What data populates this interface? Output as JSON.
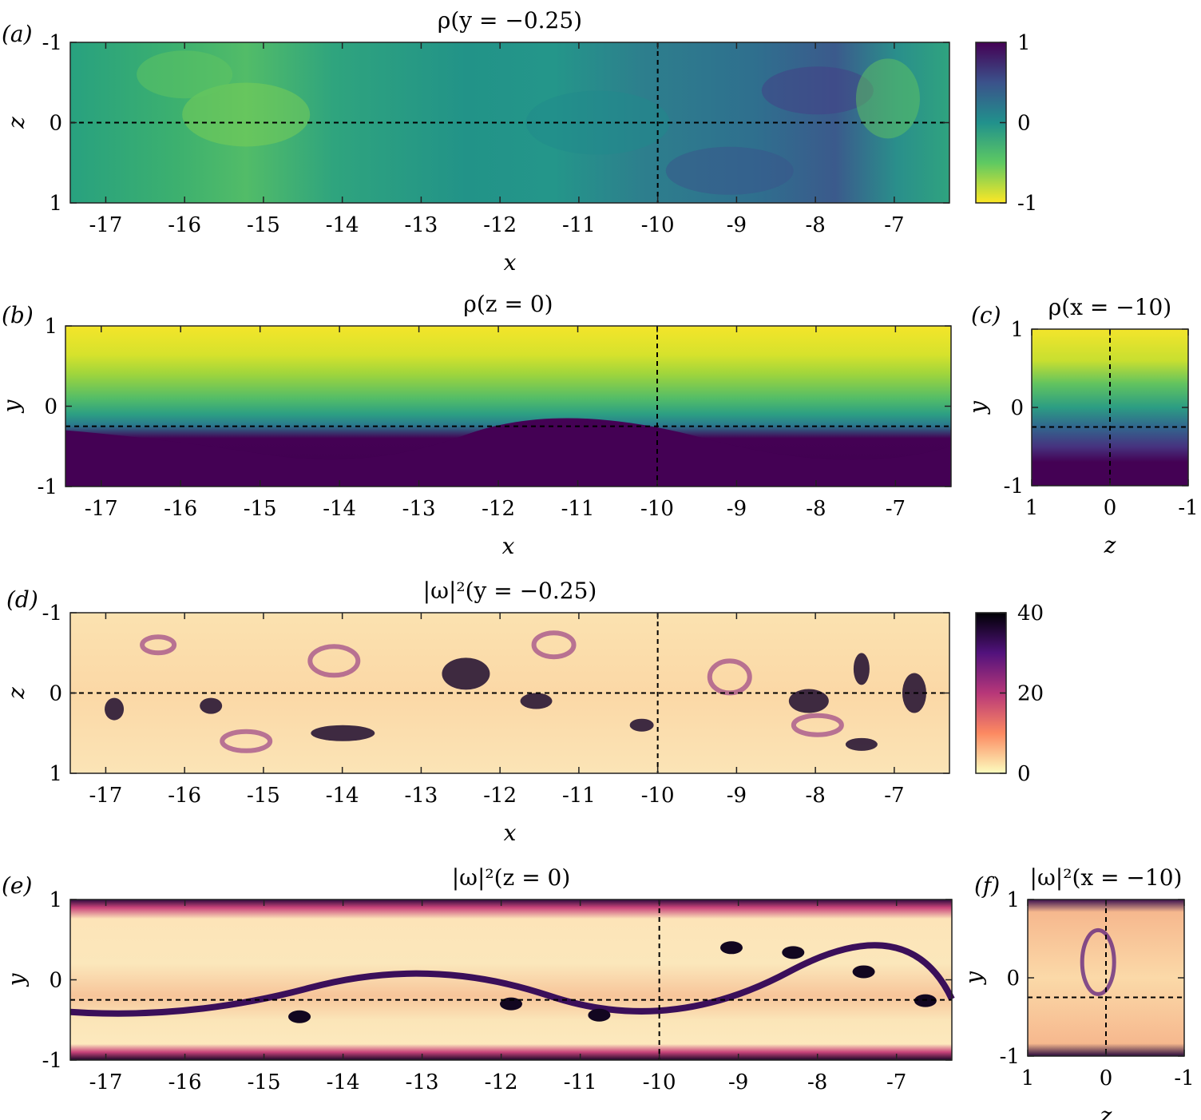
{
  "chart_data": [
    {
      "type": "heatmap",
      "panel_label": "(a)",
      "title": "ρ(y = −0.25)",
      "xlabel": "x",
      "ylabel": "z",
      "xlim": [
        -17.45,
        -6.3
      ],
      "ylim": [
        -1,
        1
      ],
      "y_reversed": true,
      "xticks": [
        "-17",
        "-16",
        "-15",
        "-14",
        "-13",
        "-12",
        "-11",
        "-10",
        "-9",
        "-8",
        "-7"
      ],
      "yticks": [
        "-1",
        "0",
        "1"
      ],
      "colormap": "viridis",
      "clim": [
        -1,
        1
      ],
      "colorbar_ticks": [
        "1",
        "0",
        "-1"
      ],
      "dashed_lines": {
        "x": -10,
        "y": 0
      }
    },
    {
      "type": "heatmap",
      "panel_label": "(b)",
      "title": "ρ(z = 0)",
      "xlabel": "x",
      "ylabel": "y",
      "xlim": [
        -17.45,
        -6.3
      ],
      "ylim": [
        -1,
        1
      ],
      "y_reversed": false,
      "xticks": [
        "-17",
        "-16",
        "-15",
        "-14",
        "-13",
        "-12",
        "-11",
        "-10",
        "-9",
        "-8",
        "-7"
      ],
      "yticks": [
        "1",
        "0",
        "-1"
      ],
      "colormap": "viridis",
      "clim": [
        -1,
        1
      ],
      "dashed_lines": {
        "x": -10,
        "y": -0.25
      }
    },
    {
      "type": "heatmap",
      "panel_label": "(c)",
      "title": "ρ(x = −10)",
      "xlabel": "z",
      "ylabel": "y",
      "xlim": [
        1,
        -1
      ],
      "ylim": [
        -1,
        1
      ],
      "xticks": [
        "1",
        "0",
        "-1"
      ],
      "yticks": [
        "1",
        "0",
        "-1"
      ],
      "colormap": "viridis",
      "clim": [
        -1,
        1
      ],
      "dashed_lines": {
        "x": 0,
        "y": -0.25
      }
    },
    {
      "type": "heatmap",
      "panel_label": "(d)",
      "title": "|ω|²(y = −0.25)",
      "xlabel": "x",
      "ylabel": "z",
      "xlim": [
        -17.45,
        -6.3
      ],
      "ylim": [
        -1,
        1
      ],
      "y_reversed": true,
      "xticks": [
        "-17",
        "-16",
        "-15",
        "-14",
        "-13",
        "-12",
        "-11",
        "-10",
        "-9",
        "-8",
        "-7"
      ],
      "yticks": [
        "-1",
        "0",
        "1"
      ],
      "colormap": "magma_r",
      "clim": [
        0,
        40
      ],
      "colorbar_ticks": [
        "40",
        "20",
        "0"
      ],
      "dashed_lines": {
        "x": -10,
        "y": 0
      }
    },
    {
      "type": "heatmap",
      "panel_label": "(e)",
      "title": "|ω|²(z = 0)",
      "xlabel": "",
      "ylabel": "y",
      "xlim": [
        -17.45,
        -6.3
      ],
      "ylim": [
        -1,
        1
      ],
      "xticks": [
        "-17",
        "-16",
        "-15",
        "-14",
        "-13",
        "-12",
        "-11",
        "-10",
        "-9",
        "-8",
        "-7"
      ],
      "yticks": [
        "1",
        "0",
        "-1"
      ],
      "colormap": "magma_r",
      "clim": [
        0,
        40
      ],
      "dashed_lines": {
        "x": -10,
        "y": -0.25
      }
    },
    {
      "type": "heatmap",
      "panel_label": "(f)",
      "title": "|ω|²(x = −10)",
      "xlabel": "z",
      "ylabel": "y",
      "xlim": [
        1,
        -1
      ],
      "ylim": [
        -1,
        1
      ],
      "xticks": [
        "1",
        "0",
        "-1"
      ],
      "yticks": [
        "1",
        "0",
        "-1"
      ],
      "colormap": "magma_r",
      "clim": [
        0,
        40
      ],
      "dashed_lines": {
        "x": 0,
        "y": -0.25
      }
    }
  ]
}
